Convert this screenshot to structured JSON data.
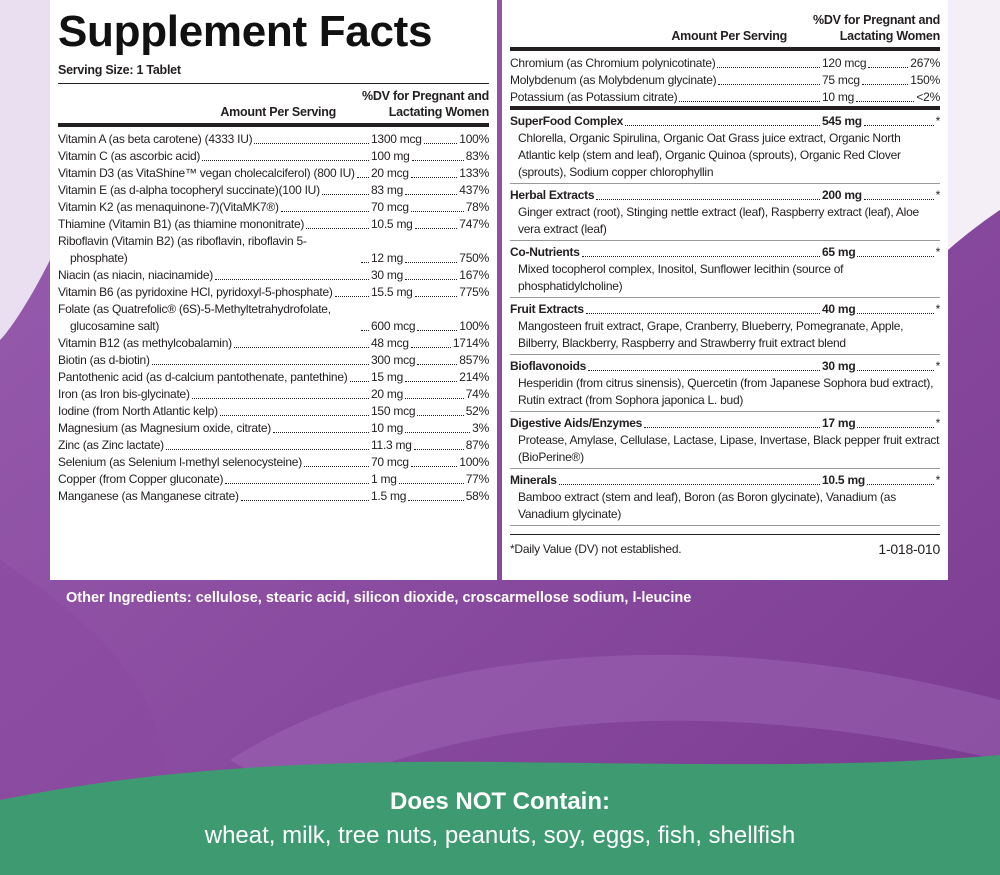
{
  "title": "Supplement Facts",
  "serving_size": "Serving Size: 1 Tablet",
  "left_header": {
    "amount": "Amount Per Serving",
    "dv_lines": [
      "%DV for Pregnant and",
      "Lactating Women"
    ]
  },
  "left_rows": [
    {
      "name": "Vitamin A (as beta carotene) (4333 IU)",
      "amount": "1300 mcg",
      "dv": "100%"
    },
    {
      "name": "Vitamin C (as ascorbic acid)",
      "amount": "100 mg",
      "dv": "83%"
    },
    {
      "name": "Vitamin D3 (as VitaShine™ vegan cholecalciferol) (800 IU)",
      "amount": "20 mcg",
      "dv": "133%"
    },
    {
      "name": "Vitamin E (as d-alpha tocopheryl succinate)(100 IU)",
      "amount": "83 mg",
      "dv": "437%"
    },
    {
      "name": "Vitamin K2 (as menaquinone-7)(VitaMK7®)",
      "amount": "70 mcg",
      "dv": "78%"
    },
    {
      "name": "Thiamine (Vitamin B1) (as thiamine mononitrate)",
      "amount": "10.5 mg",
      "dv": "747%"
    },
    {
      "name": "Riboflavin (Vitamin B2) (as riboflavin, riboflavin 5-phosphate)",
      "amount": "12 mg",
      "dv": "750%"
    },
    {
      "name": "Niacin (as niacin, niacinamide)",
      "amount": "30 mg",
      "dv": "167%"
    },
    {
      "name": "Vitamin B6 (as pyridoxine HCl, pyridoxyl-5-phosphate)",
      "amount": "15.5 mg",
      "dv": "775%"
    },
    {
      "name": "Folate (as Quatrefolic® (6S)-5-Methyltetrahydrofolate, glucosamine salt)",
      "amount": "600 mcg",
      "dv": "100%"
    },
    {
      "name": "Vitamin B12 (as methylcobalamin)",
      "amount": "48 mcg",
      "dv": "1714%"
    },
    {
      "name": "Biotin (as d-biotin)",
      "amount": "300 mcg",
      "dv": "857%"
    },
    {
      "name": "Pantothenic acid (as d-calcium pantothenate, pantethine)",
      "amount": "15 mg",
      "dv": "214%"
    },
    {
      "name": "Iron (as Iron bis-glycinate)",
      "amount": "20 mg",
      "dv": "74%"
    },
    {
      "name": "Iodine (from North Atlantic kelp)",
      "amount": "150 mcg",
      "dv": "52%"
    },
    {
      "name": "Magnesium (as Magnesium oxide, citrate)",
      "amount": "10 mg",
      "dv": "3%"
    },
    {
      "name": "Zinc (as Zinc lactate)",
      "amount": "11.3 mg",
      "dv": "87%"
    },
    {
      "name": "Selenium (as Selenium l-methyl selenocysteine)",
      "amount": "70 mcg",
      "dv": "100%"
    },
    {
      "name": "Copper (from Copper gluconate)",
      "amount": "1 mg",
      "dv": "77%"
    },
    {
      "name": "Manganese (as Manganese citrate)",
      "amount": "1.5 mg",
      "dv": "58%"
    }
  ],
  "right_header": {
    "amount": "Amount Per Serving",
    "dv_lines": [
      "%DV for Pregnant and",
      "Lactating Women"
    ]
  },
  "right_rows": [
    {
      "name": "Chromium (as Chromium polynicotinate)",
      "amount": "120 mcg",
      "dv": "267%"
    },
    {
      "name": "Molybdenum (as Molybdenum glycinate)",
      "amount": "75 mcg",
      "dv": "150%"
    },
    {
      "name": "Potassium (as Potassium citrate)",
      "amount": "10 mg",
      "dv": "<2%"
    }
  ],
  "blends": [
    {
      "name": "SuperFood Complex",
      "amount": "545 mg",
      "dv": "*",
      "ingredients": "Chlorella, Organic Spirulina, Organic Oat Grass juice extract, Organic North Atlantic kelp (stem and leaf), Organic Quinoa (sprouts), Organic Red Clover (sprouts), Sodium copper chlorophyllin"
    },
    {
      "name": "Herbal Extracts",
      "amount": "200 mg",
      "dv": "*",
      "ingredients": "Ginger extract (root), Stinging nettle extract (leaf), Raspberry extract (leaf), Aloe vera extract (leaf)"
    },
    {
      "name": "Co-Nutrients",
      "amount": "65 mg",
      "dv": "*",
      "ingredients": "Mixed tocopherol complex, Inositol, Sunflower lecithin (source of phosphatidylcholine)"
    },
    {
      "name": "Fruit Extracts",
      "amount": "40 mg",
      "dv": "*",
      "ingredients": "Mangosteen fruit extract, Grape, Cranberry, Blueberry, Pomegranate, Apple, Bilberry, Blackberry, Raspberry and Strawberry fruit extract blend"
    },
    {
      "name": "Bioflavonoids",
      "amount": "30 mg",
      "dv": "*",
      "ingredients": "Hesperidin (from citrus sinensis), Quercetin (from Japanese Sophora bud extract), Rutin extract (from Sophora japonica L. bud)"
    },
    {
      "name": "Digestive Aids/Enzymes",
      "amount": "17 mg",
      "dv": "*",
      "ingredients": "Protease, Amylase, Cellulase, Lactase, Lipase, Invertase, Black pepper fruit extract (BioPerine®)"
    },
    {
      "name": "Minerals",
      "amount": "10.5 mg",
      "dv": "*",
      "ingredients": "Bamboo extract (stem and leaf), Boron (as Boron glycinate), Vanadium (as Vanadium glycinate)"
    }
  ],
  "footnote": "*Daily Value (DV) not established.",
  "code": "1-018-010",
  "other_ingredients": "Other Ingredients: cellulose, stearic acid, silicon dioxide, croscarmellose sodium, l-leucine",
  "does_not_contain": {
    "title": "Does NOT Contain:",
    "list": "wheat, milk, tree nuts, peanuts, soy, eggs, fish, shellfish"
  }
}
